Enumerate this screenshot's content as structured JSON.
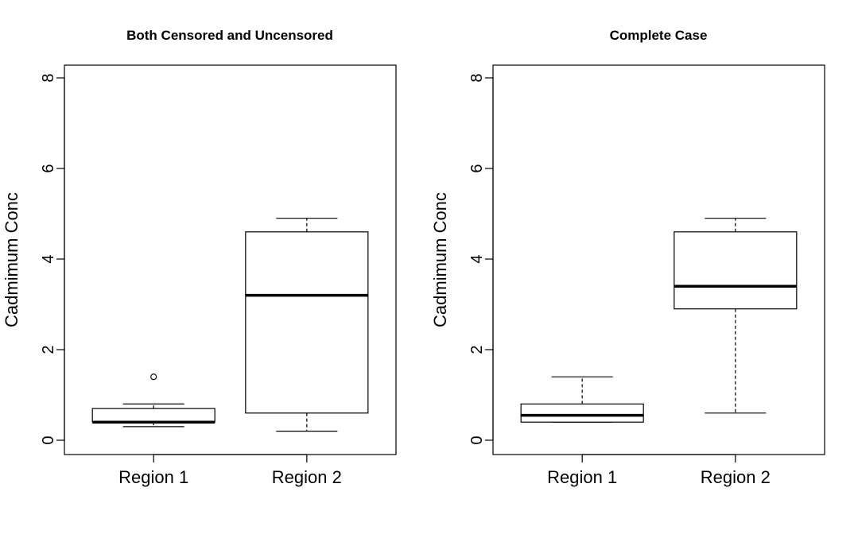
{
  "chart_data": [
    {
      "type": "boxplot",
      "title": "Both Censored and Uncensored",
      "xlabel": "",
      "ylabel": "Cadmimum Conc",
      "ylim": [
        0,
        8
      ],
      "yticks": [
        "0",
        "2",
        "4",
        "6",
        "8"
      ],
      "categories": [
        "Region 1",
        "Region 2"
      ],
      "boxes": [
        {
          "category": "Region 1",
          "whisker_low": 0.3,
          "q1": 0.4,
          "median": 0.4,
          "q3": 0.7,
          "whisker_high": 0.8,
          "outliers": [
            1.4
          ]
        },
        {
          "category": "Region 2",
          "whisker_low": 0.2,
          "q1": 0.6,
          "median": 3.2,
          "q3": 4.6,
          "whisker_high": 4.9,
          "outliers": []
        }
      ]
    },
    {
      "type": "boxplot",
      "title": "Complete Case",
      "xlabel": "",
      "ylabel": "Cadmimum Conc",
      "ylim": [
        0,
        8
      ],
      "yticks": [
        "0",
        "2",
        "4",
        "6",
        "8"
      ],
      "categories": [
        "Region 1",
        "Region 2"
      ],
      "boxes": [
        {
          "category": "Region 1",
          "whisker_low": 0.4,
          "q1": 0.4,
          "median": 0.55,
          "q3": 0.8,
          "whisker_high": 1.4,
          "outliers": []
        },
        {
          "category": "Region 2",
          "whisker_low": 0.6,
          "q1": 2.9,
          "median": 3.4,
          "q3": 4.6,
          "whisker_high": 4.9,
          "outliers": []
        }
      ]
    }
  ]
}
